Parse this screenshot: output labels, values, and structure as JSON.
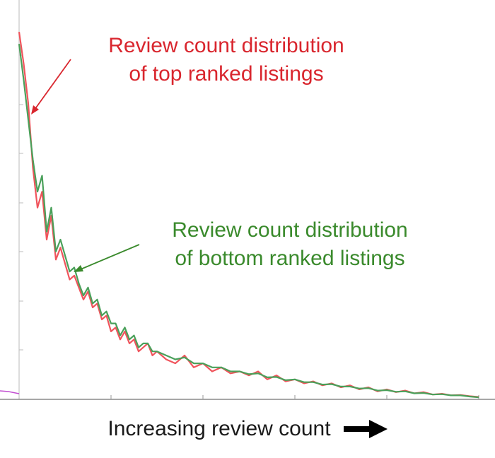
{
  "chart_data": {
    "type": "line",
    "xlabel": "Increasing review count",
    "ylabel": "",
    "grid": false,
    "x_tick_labels_visible": false,
    "y_tick_labels_visible": false,
    "xlim": [
      0,
      100
    ],
    "ylim": [
      0,
      100
    ],
    "series": [
      {
        "name": "Review count distribution of top ranked listings",
        "color": "#f0545c",
        "x": [
          0,
          1,
          2,
          3,
          4,
          5,
          6,
          7,
          8,
          9,
          10,
          11,
          12,
          13,
          14,
          15,
          16,
          17,
          18,
          19,
          20,
          21,
          22,
          23,
          24,
          25,
          26,
          27,
          28,
          29,
          30,
          32,
          34,
          36,
          38,
          40,
          42,
          44,
          46,
          48,
          50,
          52,
          54,
          56,
          58,
          60,
          62,
          64,
          66,
          68,
          70,
          72,
          74,
          76,
          78,
          80,
          82,
          84,
          86,
          88,
          90,
          92,
          94,
          96,
          98,
          100
        ],
        "values": [
          92,
          84,
          74,
          58,
          48,
          52,
          40,
          46,
          35,
          38,
          34,
          30,
          31,
          28,
          25,
          27,
          23,
          24,
          20,
          21,
          17,
          18,
          15,
          17,
          14,
          15,
          12,
          13,
          14,
          11,
          12,
          10,
          9,
          11,
          8,
          9,
          7,
          8,
          6.5,
          7,
          6,
          7,
          5,
          6,
          4.5,
          5,
          4,
          4.5,
          3.5,
          4,
          3,
          3.5,
          2.5,
          3,
          2,
          2.5,
          1.8,
          2.2,
          1.5,
          1.8,
          1.2,
          1.4,
          1,
          1.1,
          0.8,
          0.6
        ]
      },
      {
        "name": "Review count distribution of bottom ranked listings",
        "color": "#4aa05a",
        "x": [
          0,
          1,
          2,
          3,
          4,
          5,
          6,
          7,
          8,
          9,
          10,
          11,
          12,
          13,
          14,
          15,
          16,
          17,
          18,
          19,
          20,
          21,
          22,
          23,
          24,
          25,
          26,
          27,
          28,
          29,
          30,
          32,
          34,
          36,
          38,
          40,
          42,
          44,
          46,
          48,
          50,
          52,
          54,
          56,
          58,
          60,
          62,
          64,
          66,
          68,
          70,
          72,
          74,
          76,
          78,
          80,
          82,
          84,
          86,
          88,
          90,
          92,
          94,
          96,
          98,
          100
        ],
        "values": [
          89,
          80,
          70,
          60,
          52,
          56,
          42,
          48,
          37,
          40,
          36,
          32,
          33,
          29,
          26,
          28,
          24,
          25,
          21,
          22,
          19,
          19,
          16,
          18,
          15,
          16,
          13,
          14,
          14,
          12,
          12,
          11,
          10,
          10.5,
          9,
          9,
          8,
          8,
          7,
          7,
          6.3,
          6.5,
          5.5,
          5.6,
          4.8,
          5,
          4.3,
          4.3,
          3.7,
          3.8,
          3.2,
          3.2,
          2.7,
          2.8,
          2.2,
          2.3,
          1.9,
          2,
          1.5,
          1.6,
          1.2,
          1.3,
          1,
          1,
          0.7,
          0.5
        ]
      }
    ],
    "annotations": [
      {
        "line1": "Review count distribution",
        "line2": "of top ranked listings",
        "color": "#d9262e"
      },
      {
        "line1": "Review count distribution",
        "line2": "of bottom ranked listings",
        "color": "#3a8a2c"
      }
    ]
  }
}
